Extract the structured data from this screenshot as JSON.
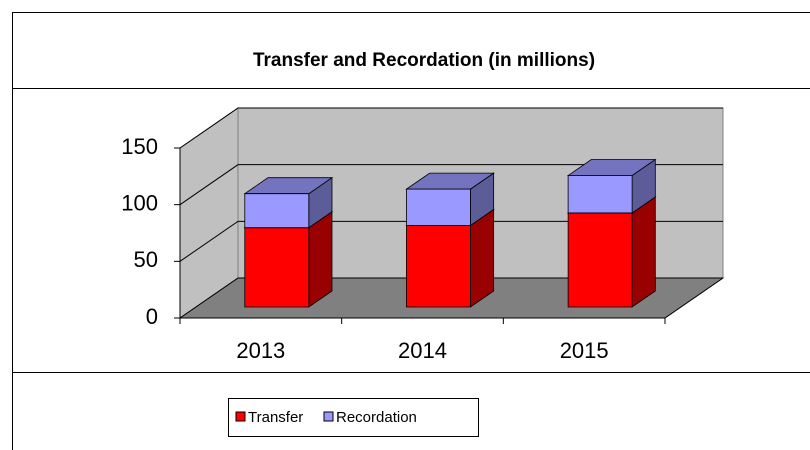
{
  "chart_data": {
    "type": "bar3d_stacked",
    "title": "Transfer and Recordation (in millions)",
    "categories": [
      "2013",
      "2014",
      "2015"
    ],
    "series": [
      {
        "name": "Transfer",
        "color": "#ff0000",
        "values": [
          70,
          72,
          83
        ]
      },
      {
        "name": "Recordation",
        "color": "#9999ff",
        "values": [
          30,
          32,
          33
        ]
      }
    ],
    "ylim": [
      0,
      150
    ],
    "yticks": [
      0,
      50,
      100,
      150
    ],
    "grid": true,
    "legend": "bottom"
  }
}
